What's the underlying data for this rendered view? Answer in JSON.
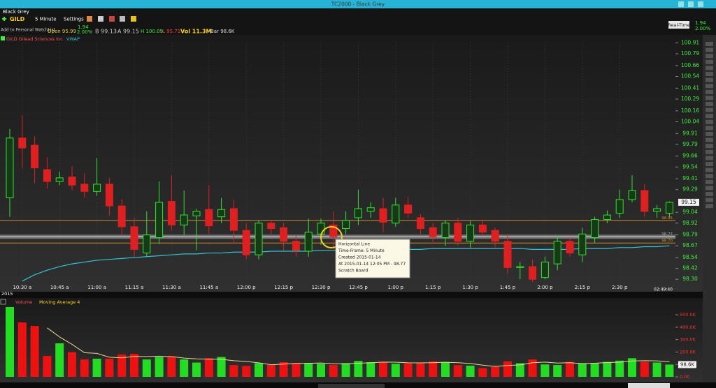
{
  "window": {
    "title": "TC2000 - Black Grey"
  },
  "menu": {
    "layout": "Black Grey"
  },
  "toolbar": {
    "symbol": "GILD",
    "timeframe": "5 Minute",
    "settings": "Settings",
    "realtime": "Real-Time",
    "change": "1.94",
    "change_pct": "2.00%"
  },
  "quote": {
    "watchlist": "Add to Personal WatchList",
    "open": "Open 95.99",
    "change": "1.94",
    "change_pct": "2.00%",
    "bid": "B 99.13",
    "ask": "A 99.15",
    "high": "H 100.09",
    "low": "L 95.71",
    "volume": "Vol 11.3M",
    "bar": "Bar 98.6K"
  },
  "tooltip": {
    "lines": [
      "Horizontal Line",
      "Time-Frame: 5 Minute",
      "Created 2015-01-14",
      "At 2015-01-14 12:05 PM - 98.77",
      "Scratch Board"
    ]
  },
  "status": {
    "year": "2015",
    "clock": "02:49:40"
  },
  "chart_data": [
    {
      "type": "candlestick",
      "title": "GILD Gilead Sciences Inc",
      "indicator": "VWAP",
      "categories": [
        null,
        "10:30 a",
        null,
        null,
        "10:45 a",
        null,
        null,
        "11:00 a",
        null,
        null,
        "11:15 a",
        null,
        null,
        "11:30 a",
        null,
        null,
        "11:45 a",
        null,
        null,
        "12:00 p",
        null,
        null,
        "12:15 p",
        null,
        null,
        "12:30 p",
        null,
        null,
        "12:45 p",
        null,
        null,
        "1:00 p",
        null,
        null,
        "1:15 p",
        null,
        null,
        "1:30 p",
        null,
        null,
        "1:45 p",
        null,
        null,
        "2:00 p",
        null,
        null,
        "2:15 p",
        null,
        null,
        "2:30 p",
        null,
        null,
        null,
        null
      ],
      "open": [
        99.2,
        99.86,
        99.78,
        99.51,
        99.38,
        99.43,
        99.35,
        99.27,
        99.35,
        99.11,
        98.88,
        98.59,
        98.76,
        99.16,
        98.9,
        99.0,
        99.07,
        98.99,
        99.08,
        98.84,
        98.57,
        98.92,
        98.87,
        98.72,
        98.61,
        98.8,
        98.9,
        98.86,
        98.98,
        99.05,
        99.08,
        98.92,
        99.12,
        98.98,
        98.87,
        98.76,
        98.92,
        98.72,
        98.9,
        98.84,
        98.72,
        98.43,
        98.44,
        98.32,
        98.47,
        98.72,
        98.57,
        98.76,
        98.96,
        99.03,
        99.18,
        99.28,
        99.05,
        99.03
      ],
      "high": [
        99.96,
        100.11,
        99.88,
        99.65,
        99.49,
        99.55,
        99.47,
        99.64,
        99.42,
        99.18,
        98.98,
        99.05,
        99.38,
        99.45,
        99.28,
        99.08,
        99.34,
        99.2,
        99.18,
        98.92,
        98.95,
        98.95,
        98.92,
        98.78,
        98.97,
        98.97,
        99.05,
        99.05,
        99.29,
        99.15,
        99.2,
        99.2,
        99.21,
        99.02,
        98.92,
        98.95,
        98.98,
        98.95,
        98.96,
        98.87,
        98.8,
        98.49,
        98.52,
        98.55,
        98.78,
        98.75,
        98.87,
        98.99,
        99.06,
        99.29,
        99.45,
        99.35,
        99.12,
        99.16
      ],
      "low": [
        98.99,
        99.53,
        99.36,
        99.3,
        99.34,
        99.28,
        99.2,
        99.22,
        99.0,
        98.79,
        98.55,
        98.55,
        98.69,
        98.84,
        98.79,
        98.62,
        98.8,
        98.92,
        98.7,
        98.52,
        98.52,
        98.78,
        98.62,
        98.55,
        98.55,
        98.68,
        98.65,
        98.8,
        98.9,
        98.98,
        98.82,
        98.88,
        98.98,
        98.8,
        98.7,
        98.67,
        98.67,
        98.65,
        98.78,
        98.65,
        98.36,
        98.3,
        98.27,
        98.3,
        98.4,
        98.55,
        98.49,
        98.7,
        98.92,
        98.98,
        99.15,
        98.99,
        98.98,
        98.99
      ],
      "close": [
        99.86,
        99.75,
        99.53,
        99.38,
        99.42,
        99.34,
        99.27,
        99.35,
        99.11,
        98.88,
        98.63,
        98.79,
        99.15,
        98.9,
        99.01,
        99.05,
        98.89,
        99.07,
        98.84,
        98.57,
        98.92,
        98.86,
        98.72,
        98.62,
        98.82,
        98.92,
        98.77,
        98.95,
        99.08,
        99.09,
        98.93,
        99.12,
        99.03,
        98.86,
        98.77,
        98.92,
        98.72,
        98.9,
        98.82,
        98.72,
        98.43,
        98.44,
        98.3,
        98.49,
        98.72,
        98.59,
        98.8,
        98.96,
        99.01,
        99.18,
        99.28,
        99.05,
        99.08,
        99.15
      ],
      "vwap": [
        null,
        98.28,
        98.35,
        98.4,
        98.44,
        98.47,
        98.49,
        98.51,
        98.52,
        98.53,
        98.54,
        98.55,
        98.56,
        98.57,
        98.58,
        98.58,
        98.59,
        98.59,
        98.6,
        98.6,
        98.6,
        98.61,
        98.61,
        98.61,
        98.61,
        98.62,
        98.62,
        98.62,
        98.62,
        98.63,
        98.63,
        98.63,
        98.63,
        98.63,
        98.64,
        98.64,
        98.64,
        98.64,
        98.64,
        98.64,
        98.64,
        98.64,
        98.63,
        98.63,
        98.63,
        98.63,
        98.64,
        98.64,
        98.64,
        98.65,
        98.65,
        98.66,
        98.66,
        98.67
      ],
      "hlines": [
        98.95,
        98.77,
        {
          "value": 98.7,
          "label": "98.70"
        }
      ],
      "hline_colors": [
        "#d98a22",
        "#a8a8a8",
        "#d98a22"
      ],
      "current": 99.15,
      "up_color": "#35e035",
      "down_color": "#e02020",
      "vwap_color": "#2ec4d8",
      "ylim": [
        98.24,
        100.96
      ],
      "yticks": [
        100.91,
        100.79,
        100.66,
        100.54,
        100.41,
        100.29,
        100.16,
        100.04,
        99.91,
        99.79,
        99.66,
        99.54,
        99.41,
        99.29,
        99.04,
        98.92,
        98.79,
        98.67,
        98.54,
        98.42,
        {
          "value": 98.3,
          "label": "98.30"
        }
      ]
    },
    {
      "type": "bar",
      "title": "Volume",
      "indicator": "Moving Average 4",
      "values": [
        562,
        438,
        410,
        168,
        270,
        199,
        140,
        146,
        146,
        180,
        185,
        140,
        160,
        165,
        140,
        115,
        150,
        160,
        95,
        88,
        110,
        95,
        118,
        110,
        112,
        105,
        95,
        110,
        128,
        118,
        120,
        105,
        110,
        115,
        125,
        120,
        95,
        90,
        70,
        80,
        125,
        110,
        140,
        100,
        95,
        120,
        110,
        112,
        120,
        130,
        150,
        120,
        115,
        98.6
      ],
      "ma": [
        null,
        null,
        null,
        394.5,
        321.5,
        261.8,
        194.3,
        188.8,
        157.8,
        153,
        164.3,
        162.8,
        166.3,
        162.5,
        151.3,
        145,
        142.5,
        141.3,
        130,
        123.3,
        113.3,
        97,
        102.8,
        108.3,
        108.8,
        111.3,
        105.5,
        105.5,
        109.5,
        112.8,
        119,
        117.8,
        113.3,
        112.5,
        113.8,
        117.5,
        113.8,
        107.5,
        93.8,
        83.8,
        91.3,
        96.3,
        113.8,
        118.8,
        111.3,
        113.8,
        106.3,
        109.3,
        115.5,
        118,
        128,
        130,
        128.8,
        120.9
      ],
      "last_label": "98.6K",
      "ma_color": "#e8d890",
      "ylim": [
        -45,
        635
      ],
      "yticks": [
        {
          "value": 500,
          "label": "500.0K"
        },
        {
          "value": 400,
          "label": "400.0K"
        },
        {
          "value": 300,
          "label": "300.0K"
        },
        {
          "value": 200,
          "label": "200.0K"
        },
        {
          "value": 100,
          "label": "100.0K"
        },
        {
          "value": 0,
          "label": "0.00"
        }
      ]
    }
  ]
}
